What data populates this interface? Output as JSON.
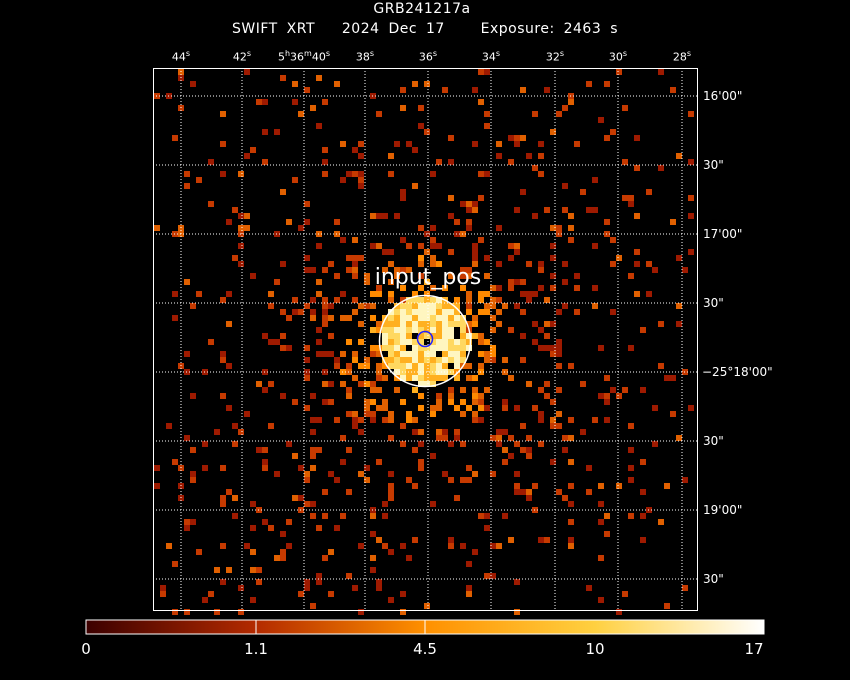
{
  "header": {
    "object": "GRB241217a",
    "instrument": "SWIFT XRT",
    "date": "2024 Dec 17",
    "exposure": "Exposure: 2463 s"
  },
  "ra_ticks": [
    {
      "base": "44",
      "unit": "s"
    },
    {
      "base": "42",
      "unit": "s"
    },
    {
      "base": "5",
      "unit": "h",
      "base2": "36",
      "unit2": "m",
      "base3": "40",
      "unit3": "s"
    },
    {
      "base": "38",
      "unit": "s"
    },
    {
      "base": "36",
      "unit": "s"
    },
    {
      "base": "34",
      "unit": "s"
    },
    {
      "base": "32",
      "unit": "s"
    },
    {
      "base": "30",
      "unit": "s"
    },
    {
      "base": "28",
      "unit": "s"
    }
  ],
  "dec_ticks": [
    "16'00\"",
    "30\"",
    "17'00\"",
    "30\"",
    "−25°18'00\"",
    "30\"",
    "19'00\"",
    "30\""
  ],
  "region_label": "input_pos",
  "colorbar": {
    "ticks": [
      "0",
      "1.1",
      "4.5",
      "10",
      "17"
    ],
    "scale": "sqrt",
    "range": [
      0,
      17
    ]
  },
  "colors": {
    "background": "#000000",
    "grid": "#ffffff",
    "region_outer": "#ffffff",
    "region_inner": "#0000ff"
  }
}
